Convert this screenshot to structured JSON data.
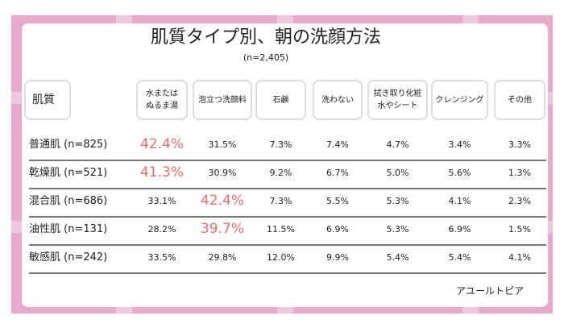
{
  "chart_data": {
    "type": "table",
    "title": "肌質タイプ別、朝の洗顔方法",
    "subtitle": "(n=2,405)",
    "row_header": "肌質",
    "columns": [
      "水または\nぬるま湯",
      "泡立つ洗顔料",
      "石鹸",
      "洗わない",
      "拭き取り化粧\n水やシート",
      "クレンジング",
      "その他"
    ],
    "rows": [
      {
        "label": "普通肌 (n=825)",
        "values": [
          "31.5%",
          "7.3%",
          "7.4%",
          "4.7%",
          "3.4%",
          "3.3%"
        ],
        "first": "42.4%",
        "cells": [
          "42.4%",
          "31.5%",
          "7.3%",
          "7.4%",
          "4.7%",
          "3.4%",
          "3.3%"
        ],
        "highlight": 0
      },
      {
        "label": "乾燥肌 (n=521)",
        "cells": [
          "41.3%",
          "30.9%",
          "9.2%",
          "6.7%",
          "5.0%",
          "5.6%",
          "1.3%"
        ],
        "highlight": 0
      },
      {
        "label": "混合肌 (n=686)",
        "cells": [
          "33.1%",
          "42.4%",
          "7.3%",
          "5.5%",
          "5.3%",
          "4.1%",
          "2.3%"
        ],
        "highlight": 1
      },
      {
        "label": "油性肌 (n=131)",
        "cells": [
          "28.2%",
          "39.7%",
          "11.5%",
          "6.9%",
          "5.3%",
          "6.9%",
          "1.5%"
        ],
        "highlight": 1
      },
      {
        "label": "敏感肌 (n=242)",
        "cells": [
          "33.5%",
          "29.8%",
          "12.0%",
          "9.9%",
          "5.4%",
          "5.4%",
          "4.1%"
        ],
        "highlight": null
      }
    ],
    "highlight_color": "#e36f6f"
  },
  "credit": "アユールトピア"
}
